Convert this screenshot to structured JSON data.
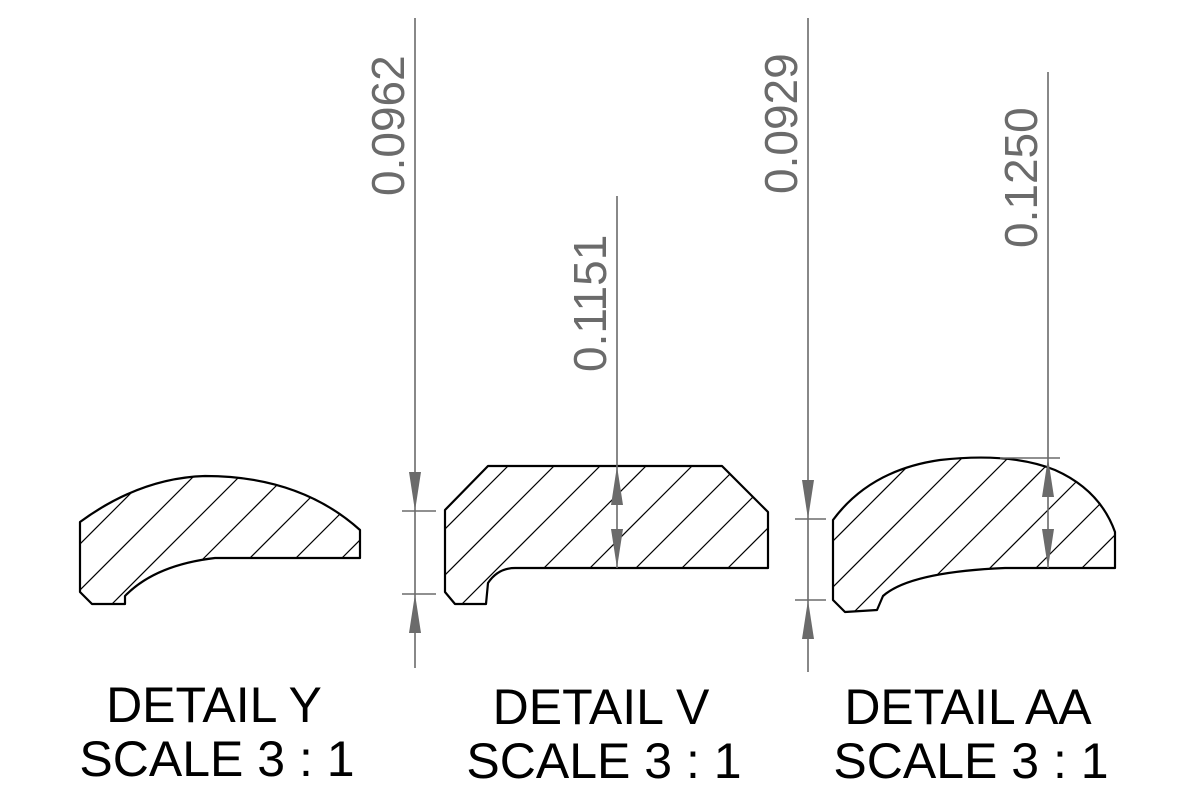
{
  "details": [
    {
      "id": "Y",
      "title": "DETAIL Y",
      "scale": "SCALE 3 : 1",
      "dimension": "0.0962"
    },
    {
      "id": "V",
      "title": "DETAIL V",
      "scale": "SCALE 3 : 1",
      "dimension": "0.1151"
    },
    {
      "id": "AA",
      "title": "DETAIL AA",
      "scale": "SCALE 3 : 1",
      "dimensions": [
        "0.0929",
        "0.1250"
      ]
    }
  ],
  "colors": {
    "outline": "#000000",
    "dimension": "#6b6b6b",
    "background": "#ffffff"
  }
}
